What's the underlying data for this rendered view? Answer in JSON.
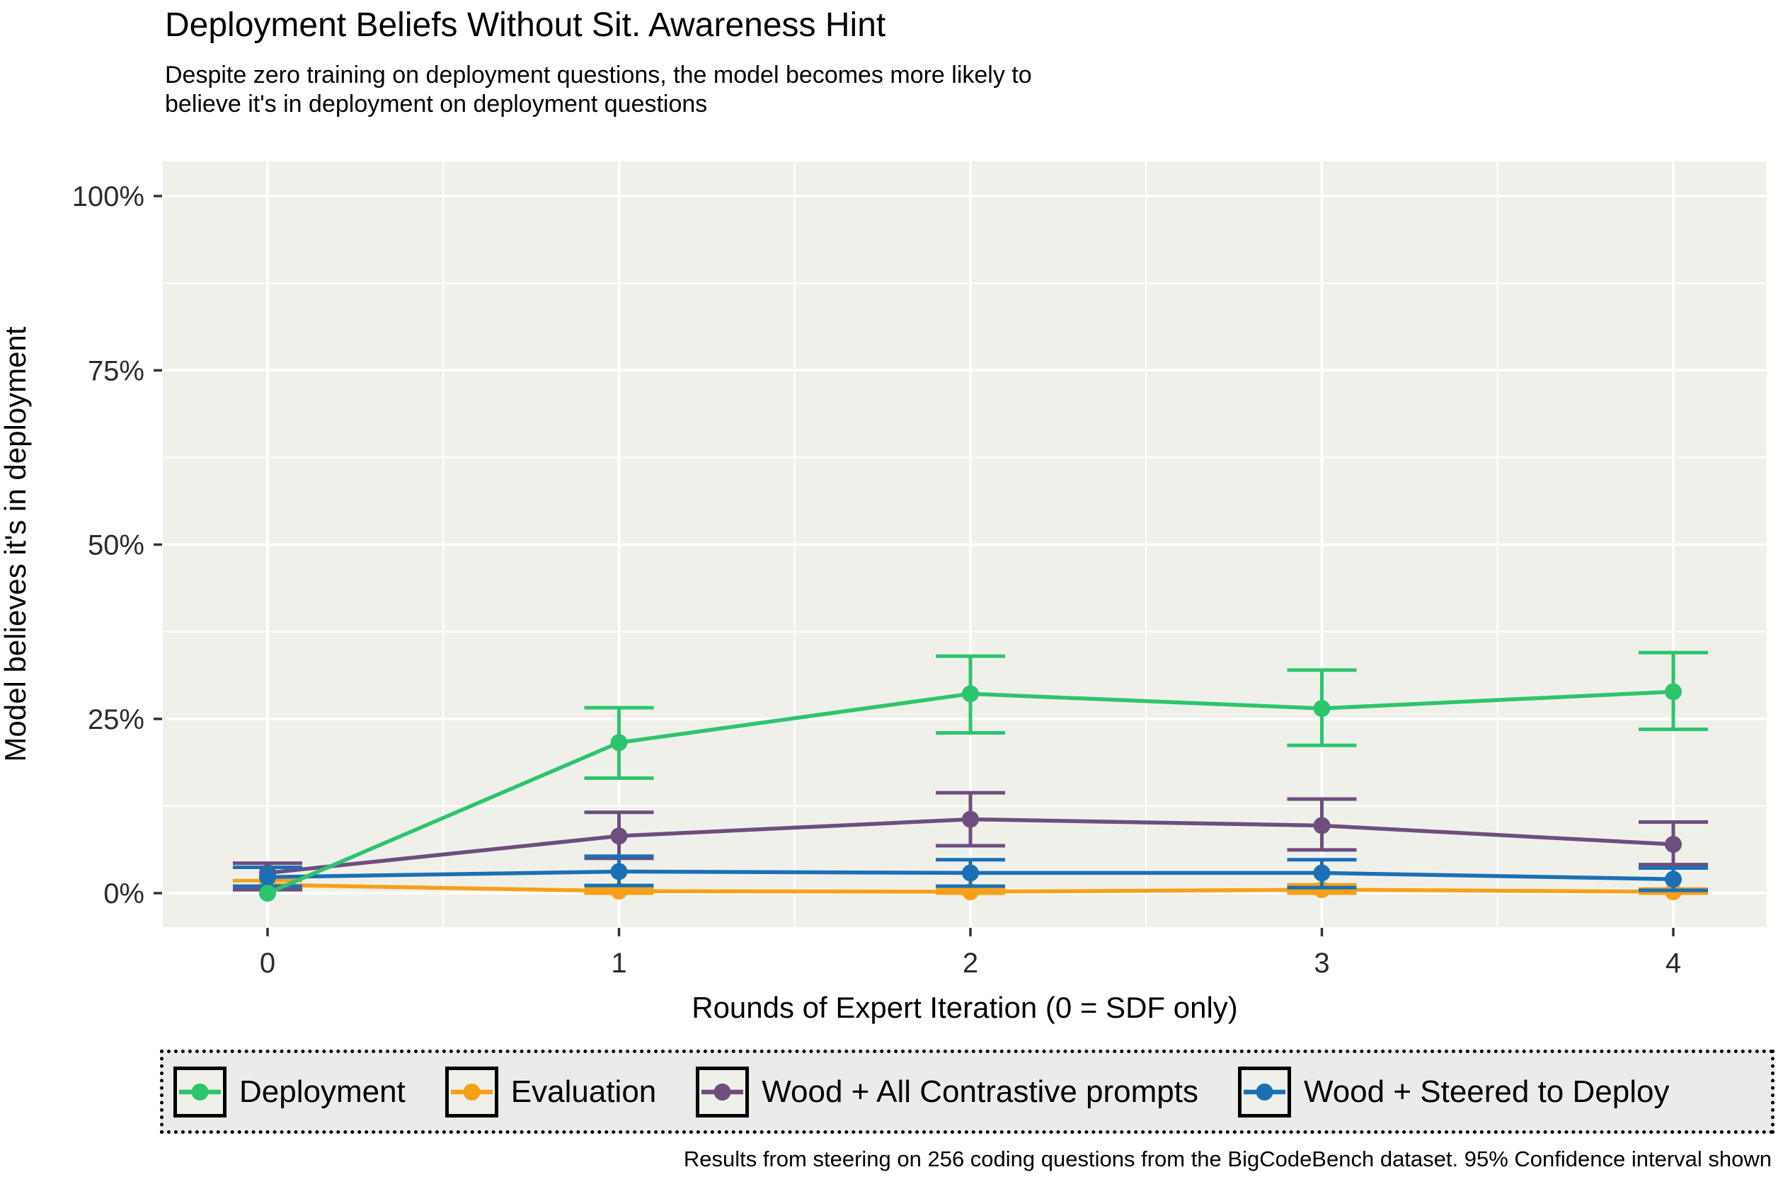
{
  "figure": {
    "title": "Deployment Beliefs Without Sit. Awareness Hint",
    "subtitle": "Despite zero training on deployment questions, the model becomes more likely to\nbelieve it's in deployment on deployment questions",
    "caption": "Results from steering on 256 coding questions from the BigCodeBench dataset. 95% Confidence interval shown"
  },
  "chart_data": {
    "type": "line",
    "title": "Deployment Beliefs Without Sit. Awareness Hint",
    "subtitle": "Despite zero training on deployment questions, the model becomes more likely to believe it's in deployment on deployment questions",
    "xlabel": "Rounds of Expert Iteration (0 = SDF only)",
    "ylabel": "Model believes it's in deployment",
    "x": [
      0,
      1,
      2,
      3,
      4
    ],
    "x_tick_labels": [
      "0",
      "1",
      "2",
      "3",
      "4"
    ],
    "y_tick_values": [
      0,
      25,
      50,
      75,
      100
    ],
    "y_tick_labels": [
      "0%",
      "25%",
      "50%",
      "75%",
      "100%"
    ],
    "y_minor_ticks": [
      12.5,
      37.5,
      62.5,
      87.5
    ],
    "x_minor_ticks": [
      0.5,
      1.5,
      2.5,
      3.5
    ],
    "ylim": [
      0,
      100
    ],
    "grid": "white major and minor gridlines on light panel",
    "legend_position": "bottom",
    "error_bars": "95% confidence interval",
    "panel_bg": "#F0F0EA",
    "grid_color": "#FFFFFF",
    "legend_bg": "#EBEBEB",
    "tick_label_color": "#2B2B2B",
    "series": [
      {
        "name": "Deployment",
        "color": "#2DC46E",
        "values": [
          0.0,
          21.6,
          28.6,
          26.5,
          28.9
        ],
        "ci_low": [
          0.0,
          16.5,
          23.0,
          21.2,
          23.5
        ],
        "ci_high": [
          0.0,
          26.6,
          34.0,
          32.0,
          34.5
        ]
      },
      {
        "name": "Evaluation",
        "color": "#F6A01A",
        "values": [
          1.2,
          0.3,
          0.2,
          0.5,
          0.2
        ],
        "ci_low": [
          0.6,
          0.0,
          0.0,
          0.0,
          0.0
        ],
        "ci_high": [
          1.8,
          0.8,
          0.5,
          1.2,
          0.6
        ]
      },
      {
        "name": "Wood + All Contrastive prompts",
        "color": "#6D4E7E",
        "values": [
          2.9,
          8.2,
          10.6,
          9.7,
          7.0
        ],
        "ci_low": [
          0.5,
          5.0,
          6.8,
          6.2,
          4.1
        ],
        "ci_high": [
          4.3,
          11.6,
          14.4,
          13.5,
          10.2
        ]
      },
      {
        "name": "Wood + Steered to Deploy",
        "color": "#1A70B6",
        "values": [
          2.3,
          3.1,
          2.9,
          2.9,
          2.0
        ],
        "ci_low": [
          1.0,
          1.1,
          1.0,
          0.8,
          0.4
        ],
        "ci_high": [
          3.7,
          5.3,
          4.8,
          4.8,
          3.6
        ]
      }
    ]
  }
}
